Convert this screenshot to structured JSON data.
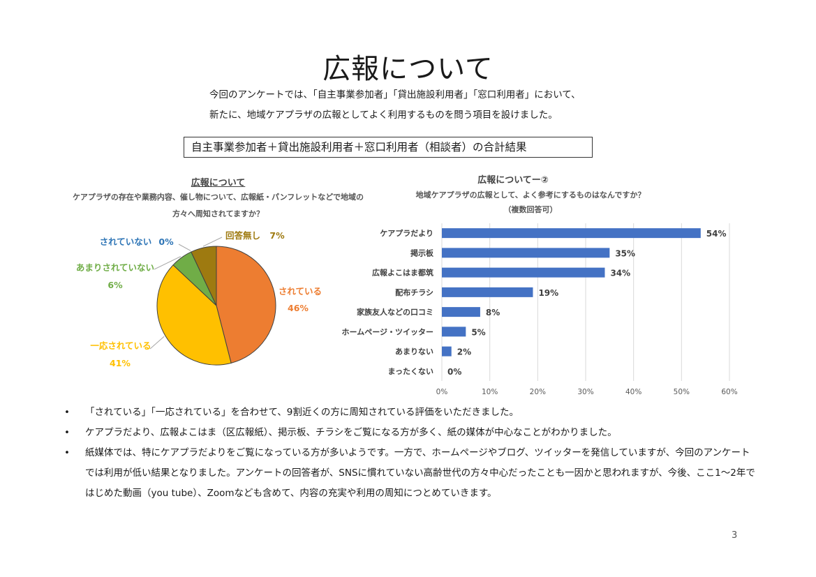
{
  "page": {
    "title": "広報について",
    "intro_line1": "今回のアンケートでは、「自主事業参加者」「貸出施設利用者」「窓口利用者」において、",
    "intro_line2": "新たに、地域ケアプラザの広報としてよく利用するものを問う項目を設けました。",
    "box_title": "自主事業参加者＋貸出施設利用者＋窓口利用者（相談者）の合計結果",
    "page_number": "3"
  },
  "pie_text": {
    "title": "広報について",
    "question": "ケアプラザの存在や業務内容、催し物について、広報紙・パンフレットなどで地域の方々へ周知されてますか？"
  },
  "bar_text": {
    "title": "広報についてー②",
    "question": "地域ケアプラザの広報として、よく参考にするものはなんですか？",
    "note": "（複数回答可）"
  },
  "chart_data": [
    {
      "type": "pie",
      "title": "広報について",
      "slices": [
        {
          "name": "されている",
          "value": 46,
          "label": "46%",
          "color": "#ED7D31"
        },
        {
          "name": "一応されている",
          "value": 41,
          "label": "41%",
          "color": "#FFC000"
        },
        {
          "name": "あまりされていない",
          "value": 6,
          "label": "6%",
          "color": "#70AD47"
        },
        {
          "name": "されていない",
          "value": 0,
          "label": "0%",
          "color": "#2E75B6"
        },
        {
          "name": "回答無し",
          "value": 7,
          "label": "7%",
          "color": "#9E7A10"
        }
      ]
    },
    {
      "type": "bar",
      "orientation": "horizontal",
      "title": "広報についてー②",
      "categories": [
        "ケアプラだより",
        "掲示板",
        "広報よこはま都筑",
        "配布チラシ",
        "家族友人などの口コミ",
        "ホームページ・ツイッター",
        "あまりない",
        "まったくない"
      ],
      "values": [
        54,
        35,
        34,
        19,
        8,
        5,
        2,
        0
      ],
      "value_labels": [
        "54%",
        "35%",
        "34%",
        "19%",
        "8%",
        "5%",
        "2%",
        "0%"
      ],
      "xlim": [
        0,
        60
      ],
      "xticks": [
        "0%",
        "10%",
        "20%",
        "30%",
        "40%",
        "50%",
        "60%"
      ],
      "grid": true,
      "bar_color": "#4472C4"
    }
  ],
  "notes": [
    "「されている」「一応されている」を合わせて、9割近くの方に周知されている評価をいただきました。",
    "ケアプラだより、広報よこはま（区広報紙）、掲示板、チラシをご覧になる方が多く、紙の媒体が中心なことがわかりました。",
    "紙媒体では、特にケアプラだよりをご覧になっている方が多いようです。一方で、ホームページやブログ、ツイッターを発信していますが、今回のアンケートでは利用が低い結果となりました。アンケートの回答者が、SNSに慣れていない高齢世代の方々中心だったことも一因かと思われますが、今後、ここ1～2年ではじめた動画（you tube）、Zoomなども含めて、内容の充実や利用の周知につとめていきます。"
  ],
  "bullet_char": "•"
}
